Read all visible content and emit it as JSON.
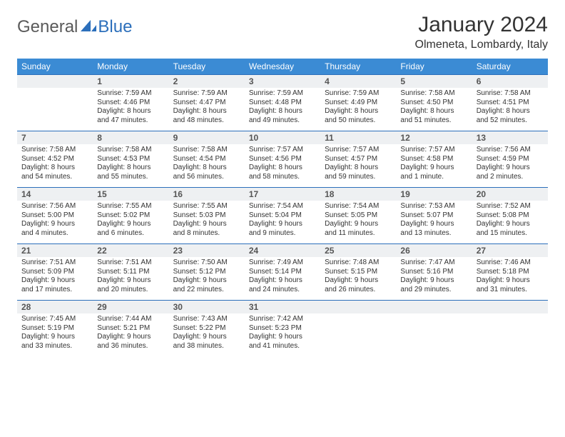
{
  "logo": {
    "text1": "General",
    "text2": "Blue",
    "color1": "#5a5a5a",
    "color2": "#2c6fbb"
  },
  "title": "January 2024",
  "location": "Olmeneta, Lombardy, Italy",
  "colors": {
    "header_bg": "#3b8bd4",
    "header_text": "#ffffff",
    "row_border": "#2c6fbb",
    "daynum_bg": "#eef0f2",
    "daynum_text": "#555555",
    "body_text": "#333333",
    "page_bg": "#ffffff"
  },
  "fonts": {
    "title_size": 30,
    "location_size": 16,
    "dow_size": 12,
    "daynum_size": 12,
    "body_size": 10
  },
  "days_of_week": [
    "Sunday",
    "Monday",
    "Tuesday",
    "Wednesday",
    "Thursday",
    "Friday",
    "Saturday"
  ],
  "weeks": [
    [
      null,
      {
        "n": "1",
        "sr": "Sunrise: 7:59 AM",
        "ss": "Sunset: 4:46 PM",
        "dl": "Daylight: 8 hours and 47 minutes."
      },
      {
        "n": "2",
        "sr": "Sunrise: 7:59 AM",
        "ss": "Sunset: 4:47 PM",
        "dl": "Daylight: 8 hours and 48 minutes."
      },
      {
        "n": "3",
        "sr": "Sunrise: 7:59 AM",
        "ss": "Sunset: 4:48 PM",
        "dl": "Daylight: 8 hours and 49 minutes."
      },
      {
        "n": "4",
        "sr": "Sunrise: 7:59 AM",
        "ss": "Sunset: 4:49 PM",
        "dl": "Daylight: 8 hours and 50 minutes."
      },
      {
        "n": "5",
        "sr": "Sunrise: 7:58 AM",
        "ss": "Sunset: 4:50 PM",
        "dl": "Daylight: 8 hours and 51 minutes."
      },
      {
        "n": "6",
        "sr": "Sunrise: 7:58 AM",
        "ss": "Sunset: 4:51 PM",
        "dl": "Daylight: 8 hours and 52 minutes."
      }
    ],
    [
      {
        "n": "7",
        "sr": "Sunrise: 7:58 AM",
        "ss": "Sunset: 4:52 PM",
        "dl": "Daylight: 8 hours and 54 minutes."
      },
      {
        "n": "8",
        "sr": "Sunrise: 7:58 AM",
        "ss": "Sunset: 4:53 PM",
        "dl": "Daylight: 8 hours and 55 minutes."
      },
      {
        "n": "9",
        "sr": "Sunrise: 7:58 AM",
        "ss": "Sunset: 4:54 PM",
        "dl": "Daylight: 8 hours and 56 minutes."
      },
      {
        "n": "10",
        "sr": "Sunrise: 7:57 AM",
        "ss": "Sunset: 4:56 PM",
        "dl": "Daylight: 8 hours and 58 minutes."
      },
      {
        "n": "11",
        "sr": "Sunrise: 7:57 AM",
        "ss": "Sunset: 4:57 PM",
        "dl": "Daylight: 8 hours and 59 minutes."
      },
      {
        "n": "12",
        "sr": "Sunrise: 7:57 AM",
        "ss": "Sunset: 4:58 PM",
        "dl": "Daylight: 9 hours and 1 minute."
      },
      {
        "n": "13",
        "sr": "Sunrise: 7:56 AM",
        "ss": "Sunset: 4:59 PM",
        "dl": "Daylight: 9 hours and 2 minutes."
      }
    ],
    [
      {
        "n": "14",
        "sr": "Sunrise: 7:56 AM",
        "ss": "Sunset: 5:00 PM",
        "dl": "Daylight: 9 hours and 4 minutes."
      },
      {
        "n": "15",
        "sr": "Sunrise: 7:55 AM",
        "ss": "Sunset: 5:02 PM",
        "dl": "Daylight: 9 hours and 6 minutes."
      },
      {
        "n": "16",
        "sr": "Sunrise: 7:55 AM",
        "ss": "Sunset: 5:03 PM",
        "dl": "Daylight: 9 hours and 8 minutes."
      },
      {
        "n": "17",
        "sr": "Sunrise: 7:54 AM",
        "ss": "Sunset: 5:04 PM",
        "dl": "Daylight: 9 hours and 9 minutes."
      },
      {
        "n": "18",
        "sr": "Sunrise: 7:54 AM",
        "ss": "Sunset: 5:05 PM",
        "dl": "Daylight: 9 hours and 11 minutes."
      },
      {
        "n": "19",
        "sr": "Sunrise: 7:53 AM",
        "ss": "Sunset: 5:07 PM",
        "dl": "Daylight: 9 hours and 13 minutes."
      },
      {
        "n": "20",
        "sr": "Sunrise: 7:52 AM",
        "ss": "Sunset: 5:08 PM",
        "dl": "Daylight: 9 hours and 15 minutes."
      }
    ],
    [
      {
        "n": "21",
        "sr": "Sunrise: 7:51 AM",
        "ss": "Sunset: 5:09 PM",
        "dl": "Daylight: 9 hours and 17 minutes."
      },
      {
        "n": "22",
        "sr": "Sunrise: 7:51 AM",
        "ss": "Sunset: 5:11 PM",
        "dl": "Daylight: 9 hours and 20 minutes."
      },
      {
        "n": "23",
        "sr": "Sunrise: 7:50 AM",
        "ss": "Sunset: 5:12 PM",
        "dl": "Daylight: 9 hours and 22 minutes."
      },
      {
        "n": "24",
        "sr": "Sunrise: 7:49 AM",
        "ss": "Sunset: 5:14 PM",
        "dl": "Daylight: 9 hours and 24 minutes."
      },
      {
        "n": "25",
        "sr": "Sunrise: 7:48 AM",
        "ss": "Sunset: 5:15 PM",
        "dl": "Daylight: 9 hours and 26 minutes."
      },
      {
        "n": "26",
        "sr": "Sunrise: 7:47 AM",
        "ss": "Sunset: 5:16 PM",
        "dl": "Daylight: 9 hours and 29 minutes."
      },
      {
        "n": "27",
        "sr": "Sunrise: 7:46 AM",
        "ss": "Sunset: 5:18 PM",
        "dl": "Daylight: 9 hours and 31 minutes."
      }
    ],
    [
      {
        "n": "28",
        "sr": "Sunrise: 7:45 AM",
        "ss": "Sunset: 5:19 PM",
        "dl": "Daylight: 9 hours and 33 minutes."
      },
      {
        "n": "29",
        "sr": "Sunrise: 7:44 AM",
        "ss": "Sunset: 5:21 PM",
        "dl": "Daylight: 9 hours and 36 minutes."
      },
      {
        "n": "30",
        "sr": "Sunrise: 7:43 AM",
        "ss": "Sunset: 5:22 PM",
        "dl": "Daylight: 9 hours and 38 minutes."
      },
      {
        "n": "31",
        "sr": "Sunrise: 7:42 AM",
        "ss": "Sunset: 5:23 PM",
        "dl": "Daylight: 9 hours and 41 minutes."
      },
      null,
      null,
      null
    ]
  ]
}
